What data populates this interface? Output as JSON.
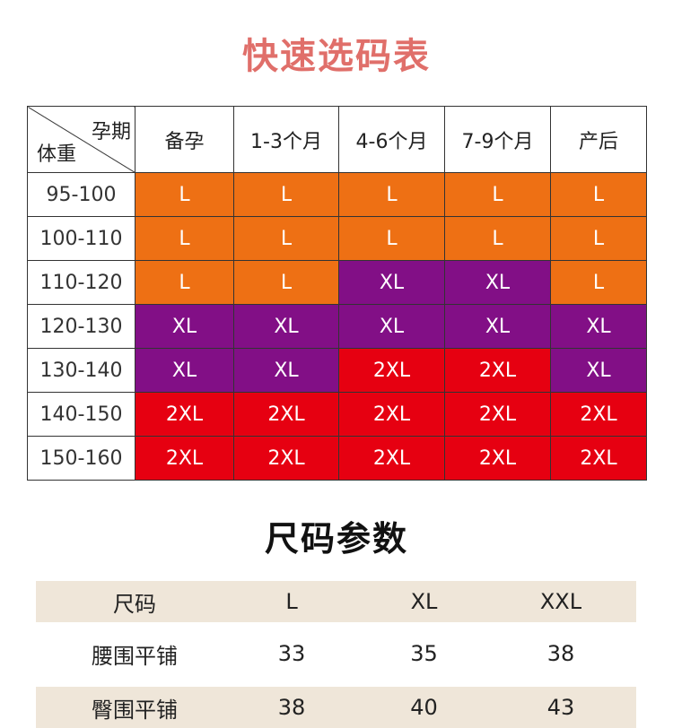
{
  "title": "快速选码表",
  "grid": {
    "corner_top": "孕期",
    "corner_bottom": "体重",
    "columns": [
      "备孕",
      "1-3个月",
      "4-6个月",
      "7-9个月",
      "产后"
    ],
    "rows": [
      {
        "label": "95-100",
        "cells": [
          "L",
          "L",
          "L",
          "L",
          "L"
        ]
      },
      {
        "label": "100-110",
        "cells": [
          "L",
          "L",
          "L",
          "L",
          "L"
        ]
      },
      {
        "label": "110-120",
        "cells": [
          "L",
          "L",
          "XL",
          "XL",
          "L"
        ]
      },
      {
        "label": "120-130",
        "cells": [
          "XL",
          "XL",
          "XL",
          "XL",
          "XL"
        ]
      },
      {
        "label": "130-140",
        "cells": [
          "XL",
          "XL",
          "2XL",
          "2XL",
          "XL"
        ]
      },
      {
        "label": "140-150",
        "cells": [
          "2XL",
          "2XL",
          "2XL",
          "2XL",
          "2XL"
        ]
      },
      {
        "label": "150-160",
        "cells": [
          "2XL",
          "2XL",
          "2XL",
          "2XL",
          "2XL"
        ]
      }
    ],
    "colors": {
      "L": "#ee7014",
      "XL": "#820f86",
      "2XL": "#e60011"
    }
  },
  "params_title": "尺码参数",
  "params": {
    "header": [
      "尺码",
      "L",
      "XL",
      "XXL"
    ],
    "rows": [
      [
        "腰围平铺",
        "33",
        "35",
        "38"
      ],
      [
        "臀围平铺",
        "38",
        "40",
        "43"
      ]
    ]
  }
}
